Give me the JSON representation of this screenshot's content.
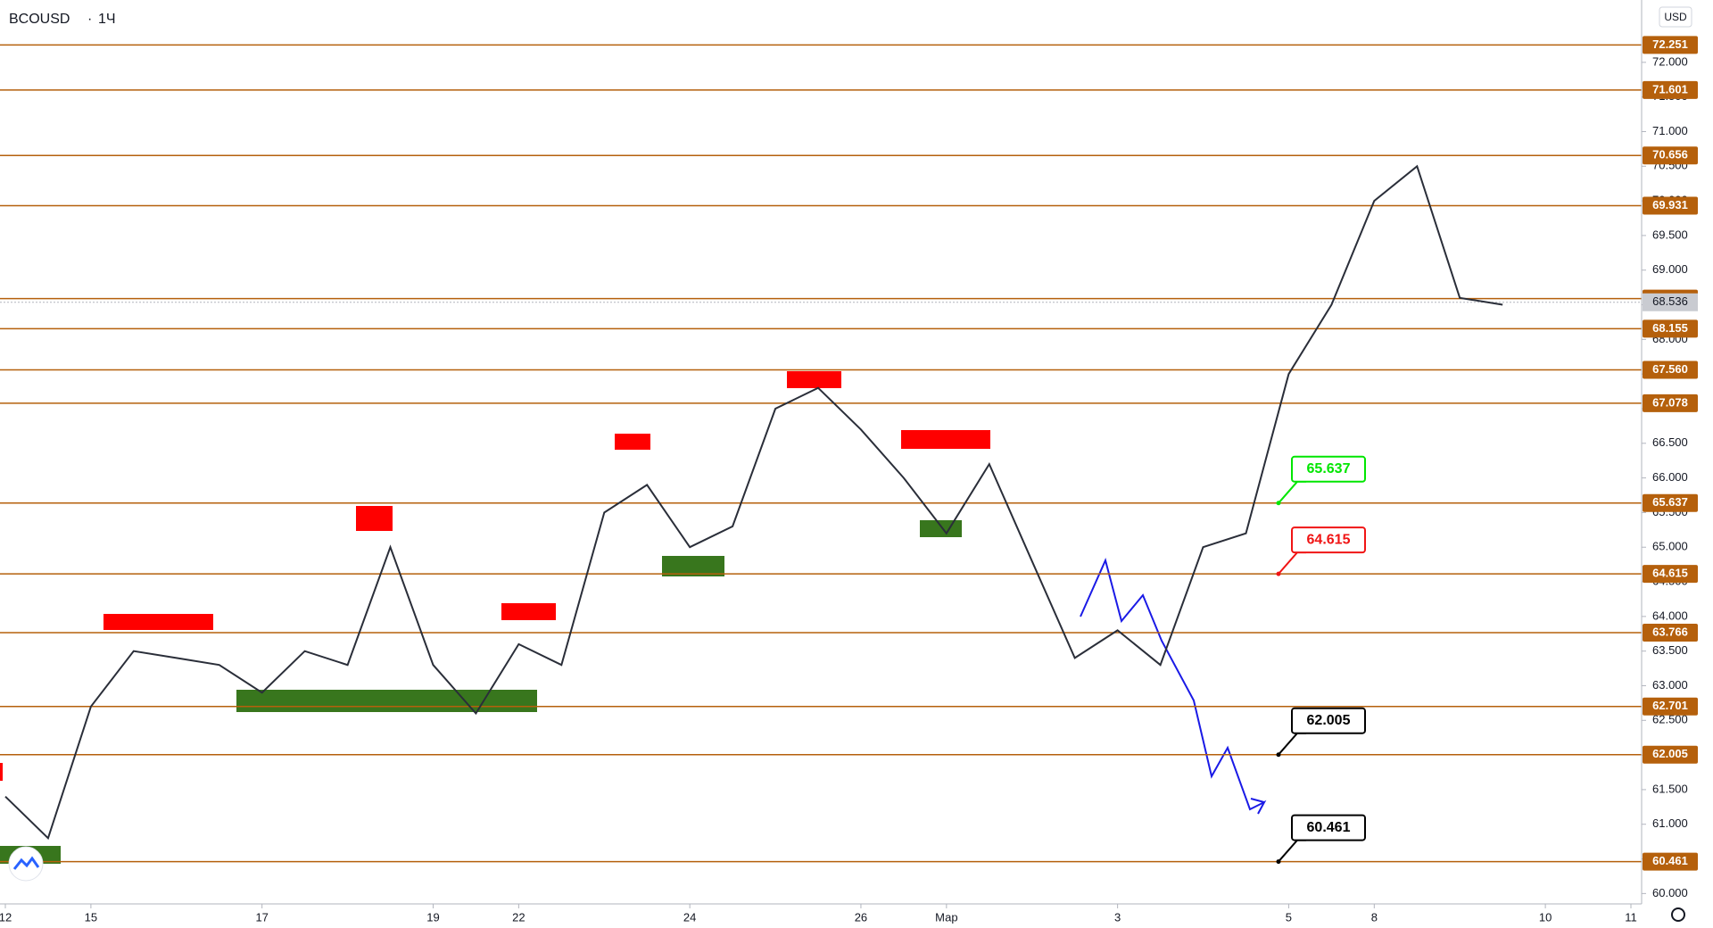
{
  "chart_data": {
    "type": "line",
    "title": "BCOUSD",
    "subtitle": "1Ч",
    "currency": "USD",
    "categories": [
      "12",
      null,
      "15",
      null,
      null,
      null,
      "17",
      null,
      null,
      null,
      "19",
      null,
      "22",
      null,
      null,
      null,
      "24",
      null,
      null,
      null,
      "26",
      null,
      "Мар",
      null,
      null,
      null,
      "3",
      null,
      null,
      null,
      "5",
      null,
      "8",
      null,
      null,
      null,
      "10",
      null,
      "11"
    ],
    "series": [
      {
        "name": "BCOUSD",
        "color": "#2a2e39",
        "values": [
          61.4,
          60.8,
          62.7,
          63.5,
          63.4,
          63.3,
          62.9,
          63.5,
          63.3,
          65.0,
          63.3,
          62.6,
          63.6,
          63.3,
          65.5,
          65.9,
          65.0,
          65.3,
          67.0,
          67.3,
          66.7,
          66.0,
          65.2,
          66.2,
          64.8,
          63.4,
          63.8,
          63.3,
          65.0,
          65.2,
          67.5,
          68.5,
          70.0,
          70.5,
          68.6,
          68.5,
          null,
          null,
          null
        ]
      }
    ],
    "ylim": [
      59.85,
      72.9
    ],
    "yticks": [
      {
        "value": 60,
        "label": "60.000"
      },
      {
        "value": 60.5,
        "label": "60.500"
      },
      {
        "value": 61,
        "label": "61.000"
      },
      {
        "value": 61.5,
        "label": "61.500"
      },
      {
        "value": 62,
        "label": "62.000"
      },
      {
        "value": 62.5,
        "label": "62.500"
      },
      {
        "value": 63,
        "label": "63.000"
      },
      {
        "value": 63.5,
        "label": "63.500"
      },
      {
        "value": 64,
        "label": "64.000"
      },
      {
        "value": 64.5,
        "label": "64.500"
      },
      {
        "value": 65,
        "label": "65.000"
      },
      {
        "value": 65.5,
        "label": "65.500"
      },
      {
        "value": 66,
        "label": "66.000"
      },
      {
        "value": 66.5,
        "label": "66.500"
      },
      {
        "value": 67,
        "label": "67.000"
      },
      {
        "value": 67.5,
        "label": "67.500"
      },
      {
        "value": 68,
        "label": "68.000"
      },
      {
        "value": 68.5,
        "label": "68.500"
      },
      {
        "value": 69,
        "label": "69.000"
      },
      {
        "value": 69.5,
        "label": "69.500"
      },
      {
        "value": 70,
        "label": "70.000"
      },
      {
        "value": 70.5,
        "label": "70.500"
      },
      {
        "value": 71,
        "label": "71.000"
      },
      {
        "value": 71.5,
        "label": "71.500"
      },
      {
        "value": 72,
        "label": "72.000"
      }
    ],
    "levels": [
      72.251,
      71.601,
      70.656,
      69.931,
      68.589,
      68.155,
      {
        "value": 67.56,
        "label": "67.560"
      },
      67.078,
      65.637,
      64.615,
      63.766,
      62.701,
      62.005,
      60.461
    ],
    "level_color": "#b5600c",
    "last_price": 68.536,
    "annotations": [
      {
        "value": 65.637,
        "color": "#00e600"
      },
      {
        "value": 64.615,
        "color": "#f01414"
      },
      {
        "value": 62.005,
        "color": "#000000"
      },
      {
        "value": 60.461,
        "color": "#000000"
      }
    ]
  }
}
